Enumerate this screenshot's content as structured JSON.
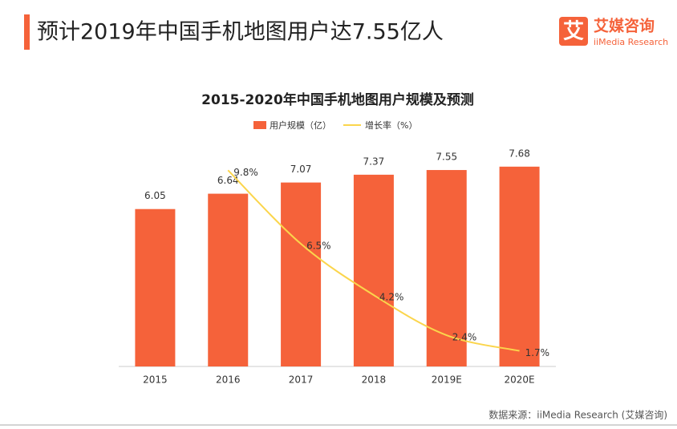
{
  "header": {
    "title": "预计2019年中国手机地图用户达7.55亿人",
    "logo_icon": "艾",
    "logo_name": "艾媒咨询",
    "logo_sub": "iiMedia Research"
  },
  "chart_data": {
    "type": "bar-line",
    "title": "2015-2020年中国手机地图用户规模及预测",
    "categories": [
      "2015",
      "2016",
      "2017",
      "2018",
      "2019E",
      "2020E"
    ],
    "series": [
      {
        "name": "用户规模（亿）",
        "type": "bar",
        "color": "#f5623a",
        "values": [
          6.05,
          6.64,
          7.07,
          7.37,
          7.55,
          7.68
        ]
      },
      {
        "name": "增长率（%）",
        "type": "line",
        "axis": "y2",
        "color": "#fbd54c",
        "values": [
          null,
          9.8,
          6.5,
          4.2,
          2.4,
          1.7
        ],
        "value_labels": [
          null,
          "9.8%",
          "6.5%",
          "4.2%",
          "2.4%",
          "1.7%"
        ]
      }
    ],
    "ylim": [
      0,
      9
    ],
    "y2lim": [
      1,
      11.5
    ],
    "legend": "top"
  },
  "footer": {
    "source": "数据来源：iiMedia Research (艾媒咨询)"
  }
}
